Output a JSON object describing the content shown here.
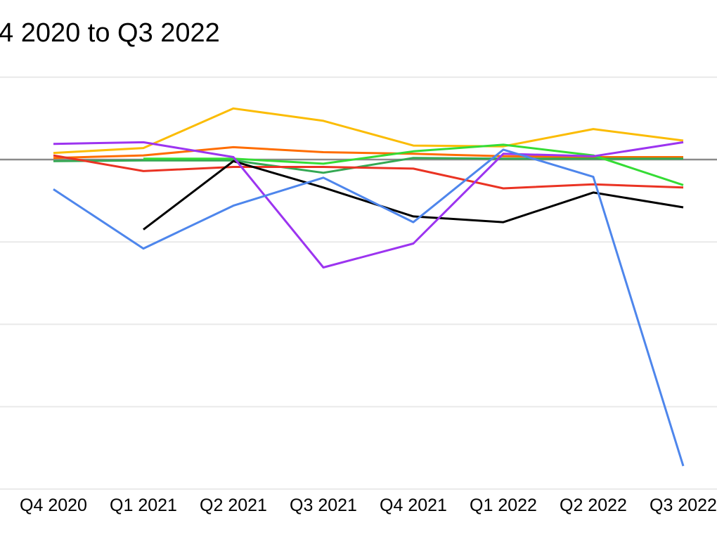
{
  "chart_data": {
    "type": "line",
    "title": "4 2020 to Q3 2022",
    "subtitle": "",
    "xlabel": "",
    "ylabel": "",
    "categories": [
      "Q4 2020",
      "Q1 2021",
      "Q2 2021",
      "Q3 2021",
      "Q4 2021",
      "Q1 2022",
      "Q2 2022",
      "Q3 2022"
    ],
    "series": [
      {
        "name": "amber",
        "color": "#FBBC04",
        "values": [
          0.08,
          0.14,
          0.62,
          0.47,
          0.17,
          0.16,
          0.37,
          0.23
        ]
      },
      {
        "name": "orange",
        "color": "#FF6D01",
        "values": [
          0.02,
          0.05,
          0.15,
          0.09,
          0.07,
          0.04,
          0.03,
          0.03
        ]
      },
      {
        "name": "dark-green",
        "color": "#34A853",
        "values": [
          -0.02,
          -0.01,
          -0.01,
          -0.16,
          0.02,
          0.01,
          0.01,
          0.01
        ]
      },
      {
        "name": "red",
        "color": "#EA3323",
        "values": [
          0.05,
          -0.14,
          -0.09,
          -0.09,
          -0.11,
          -0.35,
          -0.3,
          -0.34
        ]
      },
      {
        "name": "black",
        "color": "#000000",
        "values": [
          null,
          -0.85,
          -0.02,
          -0.34,
          -0.69,
          -0.76,
          -0.4,
          -0.58
        ]
      },
      {
        "name": "bright-green",
        "color": "#35DC35",
        "values": [
          null,
          0.01,
          0.01,
          -0.05,
          0.1,
          0.18,
          0.05,
          -0.31
        ]
      },
      {
        "name": "purple",
        "color": "#9C34F0",
        "values": [
          0.19,
          0.21,
          0.03,
          -1.31,
          -1.02,
          0.07,
          0.04,
          0.21
        ]
      },
      {
        "name": "blue",
        "color": "#4E86EC",
        "values": [
          -0.36,
          -1.08,
          -0.56,
          -0.22,
          -0.76,
          0.12,
          -0.21,
          -3.72
        ]
      }
    ],
    "ylim": [
      -4,
      1
    ],
    "grid_step": 1,
    "grid": true,
    "y_axis_labels_visible": false,
    "legend_position": "none",
    "zero_line": true,
    "colors": {
      "background": "#ffffff",
      "gridline": "#e9e9e9",
      "zero_line": "#8a8a8a",
      "title_text": "#000000",
      "tick_text": "#000000"
    }
  }
}
